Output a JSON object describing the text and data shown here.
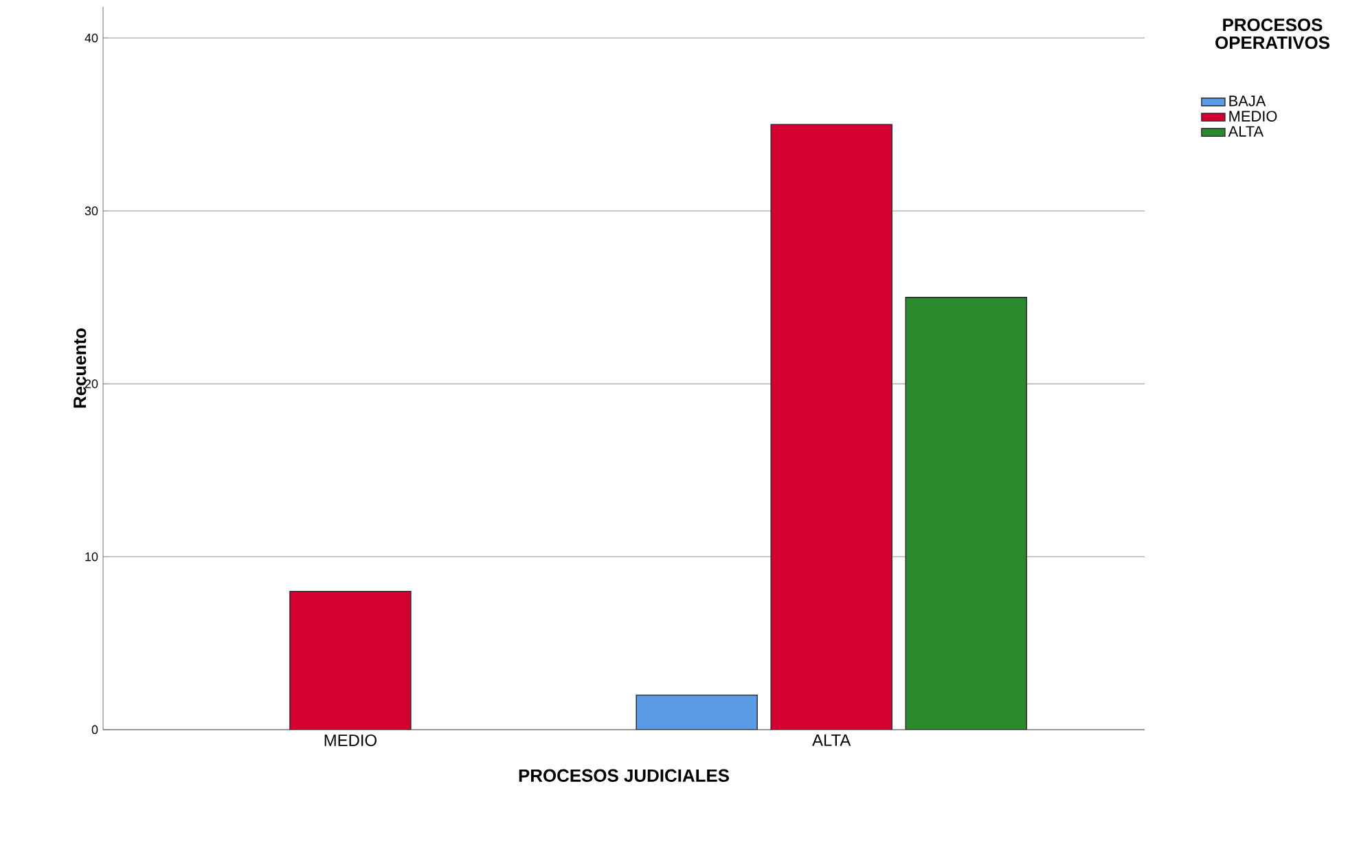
{
  "chart_data": {
    "type": "bar",
    "xlabel": "PROCESOS JUDICIALES",
    "ylabel": "Recuento",
    "legend_title": "PROCESOS OPERATIVOS",
    "categories": [
      "MEDIO",
      "ALTA"
    ],
    "series": [
      {
        "name": "BAJA",
        "color": "#5b9be6",
        "values": [
          null,
          2
        ]
      },
      {
        "name": "MEDIO",
        "color": "#d40032",
        "values": [
          8,
          35
        ]
      },
      {
        "name": "ALTA",
        "color": "#2b8a2b",
        "values": [
          null,
          25
        ]
      }
    ],
    "ylim": [
      0,
      41.8
    ],
    "yticks": [
      0,
      10,
      20,
      30,
      40
    ],
    "grid": "y",
    "legend": "top right"
  }
}
